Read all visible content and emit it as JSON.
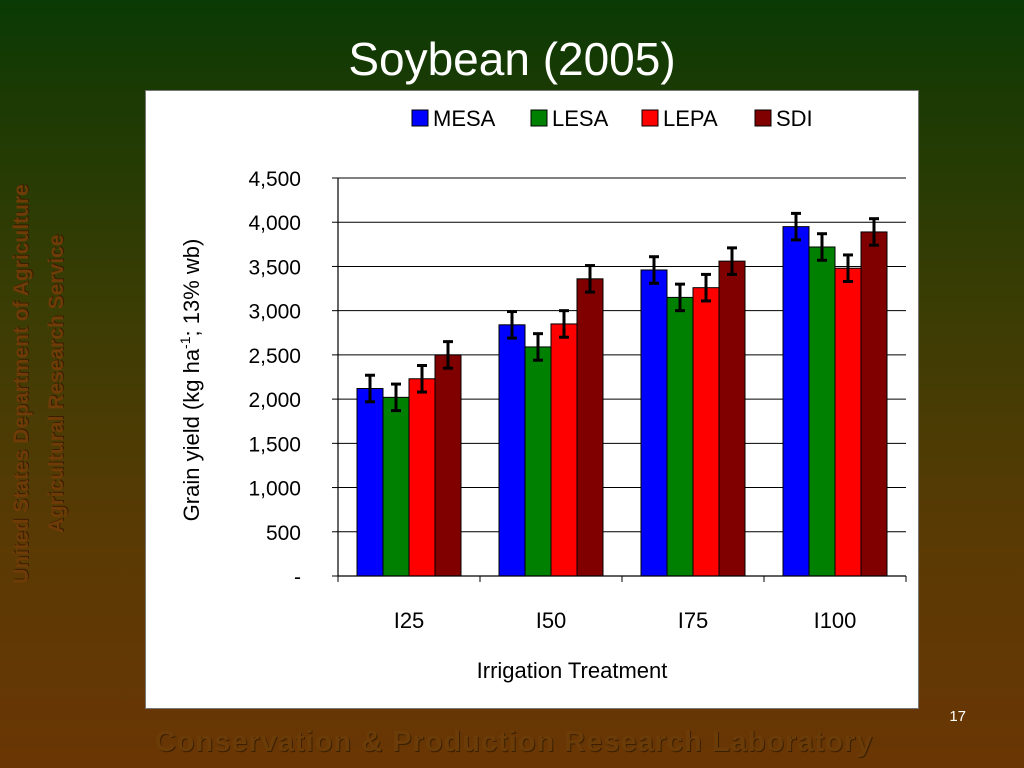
{
  "slide": {
    "title": "Soybean (2005)",
    "org_line1": "United States Department of Agriculture",
    "org_line2": "Agricultural Research Service",
    "footer": "Conservation & Production Research Laboratory",
    "page_number": "17"
  },
  "chart_data": {
    "type": "bar",
    "title": "",
    "xlabel": "Irrigation Treatment",
    "ylabel_main": "Grain yield (kg ha",
    "ylabel_sup": "-1",
    "ylabel_tail": "; 13% wb)",
    "categories": [
      "I25",
      "I50",
      "I75",
      "I100"
    ],
    "series": [
      {
        "name": "MESA",
        "color": "#0000ff",
        "values": [
          2120,
          2840,
          3460,
          3950
        ],
        "errors": [
          150,
          150,
          150,
          150
        ]
      },
      {
        "name": "LESA",
        "color": "#008000",
        "values": [
          2020,
          2590,
          3150,
          3720
        ],
        "errors": [
          150,
          150,
          150,
          150
        ]
      },
      {
        "name": "LEPA",
        "color": "#ff0000",
        "values": [
          2230,
          2850,
          3260,
          3480
        ],
        "errors": [
          150,
          150,
          150,
          150
        ]
      },
      {
        "name": "SDI",
        "color": "#800000",
        "values": [
          2500,
          3360,
          3560,
          3890
        ],
        "errors": [
          150,
          150,
          150,
          150
        ]
      }
    ],
    "ylim": [
      0,
      4500
    ],
    "yticks": [
      0,
      500,
      1000,
      1500,
      2000,
      2500,
      3000,
      3500,
      4000,
      4500
    ],
    "ytick_labels": [
      "-",
      "500",
      "1,000",
      "1,500",
      "2,000",
      "2,500",
      "3,000",
      "3,500",
      "4,000",
      "4,500"
    ],
    "grid": true,
    "legend_position": "top"
  }
}
